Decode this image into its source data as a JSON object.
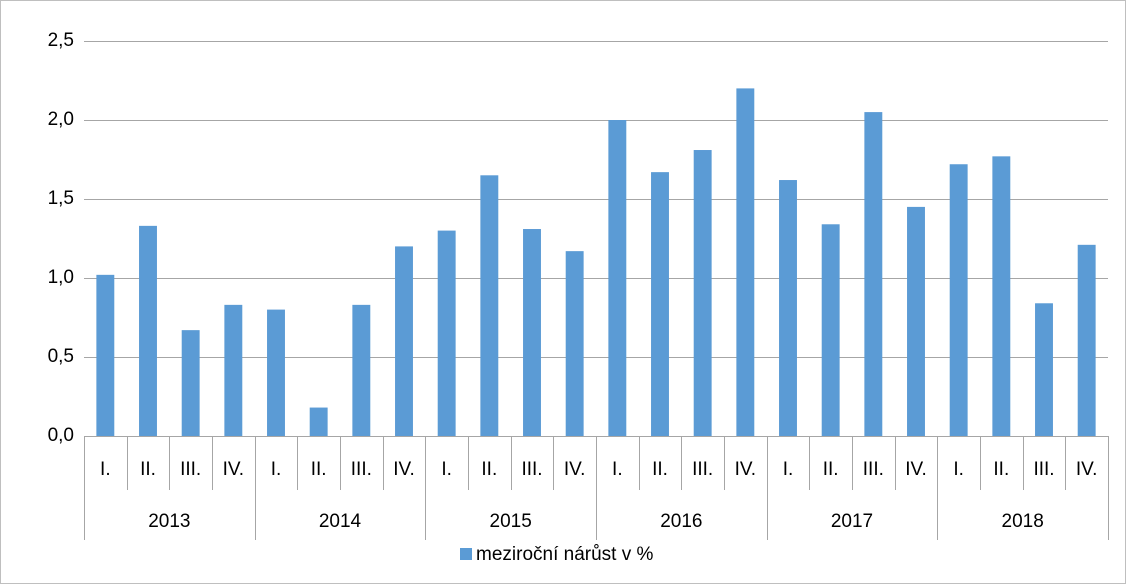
{
  "chart_data": {
    "type": "bar",
    "categories": [
      "I.",
      "II.",
      "III.",
      "IV.",
      "I.",
      "II.",
      "III.",
      "IV.",
      "I.",
      "II.",
      "III.",
      "IV.",
      "I.",
      "II.",
      "III.",
      "IV.",
      "I.",
      "II.",
      "III.",
      "IV.",
      "I.",
      "II.",
      "III.",
      "IV."
    ],
    "groups": [
      "2013",
      "2014",
      "2015",
      "2016",
      "2017",
      "2018"
    ],
    "series": [
      {
        "name": "meziroční nárůst v %",
        "color": "#5b9bd5",
        "values": [
          1.02,
          1.33,
          0.67,
          0.83,
          0.8,
          0.18,
          0.83,
          1.2,
          1.3,
          1.65,
          1.31,
          1.17,
          2.0,
          1.67,
          1.81,
          2.2,
          1.62,
          1.34,
          2.05,
          1.45,
          1.72,
          1.77,
          0.84,
          1.21
        ]
      }
    ],
    "ylim": [
      0,
      2.5
    ],
    "yticks": [
      {
        "value": 0,
        "label": "0,0"
      },
      {
        "value": 0.5,
        "label": "0,5"
      },
      {
        "value": 1,
        "label": "1,0"
      },
      {
        "value": 1.5,
        "label": "1,5"
      },
      {
        "value": 2,
        "label": "2,0"
      },
      {
        "value": 2.5,
        "label": "2,5"
      }
    ],
    "grid": true,
    "legend": "bottom"
  }
}
